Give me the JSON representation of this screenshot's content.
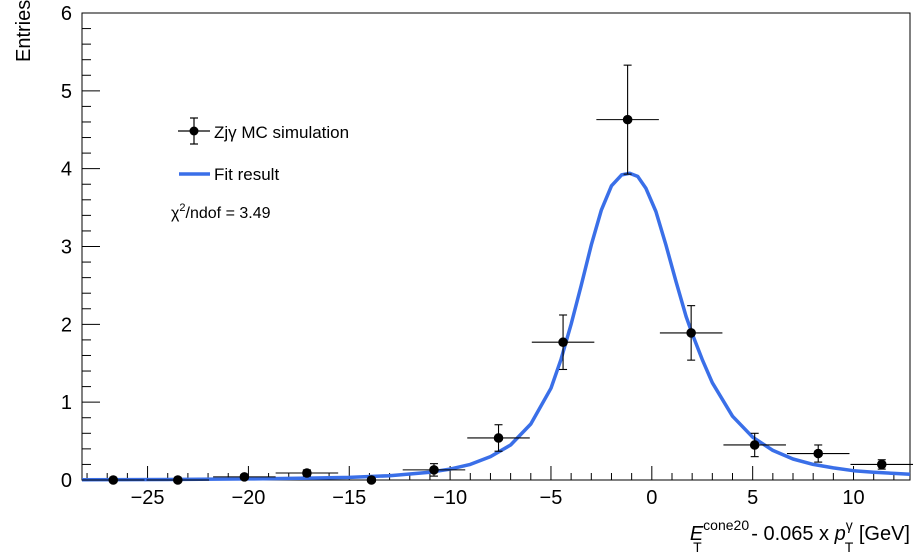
{
  "chart_data": {
    "type": "scatter",
    "xlabel": {
      "main": "E",
      "main_sup": "cone20",
      "main_sub": "T",
      "middle": " - 0.065 x ",
      "p": "p",
      "p_sup": "γ",
      "p_sub": "T",
      "unit": " [GeV]"
    },
    "ylabel": "Entries",
    "xlim": [
      -28.25,
      12.8
    ],
    "ylim": [
      0,
      6
    ],
    "x_ticks": [
      -25,
      -20,
      -15,
      -10,
      -5,
      0,
      5,
      10
    ],
    "y_ticks": [
      0,
      1,
      2,
      3,
      4,
      5,
      6
    ],
    "legend": [
      {
        "label": "Zjγ MC simulation",
        "marker": "point-with-errors",
        "color": "#000000"
      },
      {
        "label": "Fit result",
        "marker": "line",
        "color": "#3a6fe8"
      }
    ],
    "annotation": {
      "chi": "χ",
      "sup": "2",
      "rest": "/ndof = 3.49"
    },
    "series": [
      {
        "name": "Zjγ MC simulation",
        "color": "#000000",
        "points": [
          {
            "x": -26.7,
            "y": 0.0,
            "xerr": 1.55,
            "yerr": 0.0
          },
          {
            "x": -23.5,
            "y": 0.0,
            "xerr": 1.55,
            "yerr": 0.0
          },
          {
            "x": -20.2,
            "y": 0.04,
            "xerr": 1.55,
            "yerr": 0.03
          },
          {
            "x": -17.1,
            "y": 0.09,
            "xerr": 1.55,
            "yerr": 0.04
          },
          {
            "x": -13.9,
            "y": 0.0,
            "xerr": 1.55,
            "yerr": 0.0
          },
          {
            "x": -10.8,
            "y": 0.13,
            "xerr": 1.55,
            "yerr": 0.08
          },
          {
            "x": -7.6,
            "y": 0.54,
            "xerr": 1.55,
            "yerr": 0.17
          },
          {
            "x": -4.4,
            "y": 1.77,
            "xerr": 1.55,
            "yerr": 0.35
          },
          {
            "x": -1.2,
            "y": 4.63,
            "xerr": 1.55,
            "yerr": 0.7
          },
          {
            "x": 1.95,
            "y": 1.89,
            "xerr": 1.55,
            "yerr": 0.35
          },
          {
            "x": 5.1,
            "y": 0.45,
            "xerr": 1.55,
            "yerr": 0.15
          },
          {
            "x": 8.25,
            "y": 0.34,
            "xerr": 1.55,
            "yerr": 0.11
          },
          {
            "x": 11.4,
            "y": 0.2,
            "xerr": 1.55,
            "yerr": 0.06
          }
        ]
      },
      {
        "name": "Fit result",
        "color": "#3a6fe8",
        "curve": [
          [
            -28.25,
            0.003
          ],
          [
            -24,
            0.007
          ],
          [
            -20,
            0.014
          ],
          [
            -17,
            0.024
          ],
          [
            -15,
            0.034
          ],
          [
            -13,
            0.055
          ],
          [
            -11,
            0.1
          ],
          [
            -10,
            0.14
          ],
          [
            -9,
            0.2
          ],
          [
            -8,
            0.3
          ],
          [
            -7,
            0.45
          ],
          [
            -6,
            0.72
          ],
          [
            -5,
            1.18
          ],
          [
            -4.5,
            1.55
          ],
          [
            -4,
            2.0
          ],
          [
            -3.5,
            2.5
          ],
          [
            -3,
            3.02
          ],
          [
            -2.5,
            3.47
          ],
          [
            -2,
            3.78
          ],
          [
            -1.5,
            3.92
          ],
          [
            -1.1,
            3.94
          ],
          [
            -0.7,
            3.9
          ],
          [
            -0.3,
            3.75
          ],
          [
            0.2,
            3.45
          ],
          [
            0.7,
            3.02
          ],
          [
            1.2,
            2.55
          ],
          [
            1.7,
            2.1
          ],
          [
            2.0,
            1.88
          ],
          [
            2.5,
            1.55
          ],
          [
            3,
            1.25
          ],
          [
            4,
            0.82
          ],
          [
            5,
            0.55
          ],
          [
            6,
            0.38
          ],
          [
            7,
            0.27
          ],
          [
            8,
            0.2
          ],
          [
            9,
            0.155
          ],
          [
            10,
            0.12
          ],
          [
            11,
            0.1
          ],
          [
            12,
            0.085
          ],
          [
            12.8,
            0.075
          ]
        ]
      }
    ]
  }
}
